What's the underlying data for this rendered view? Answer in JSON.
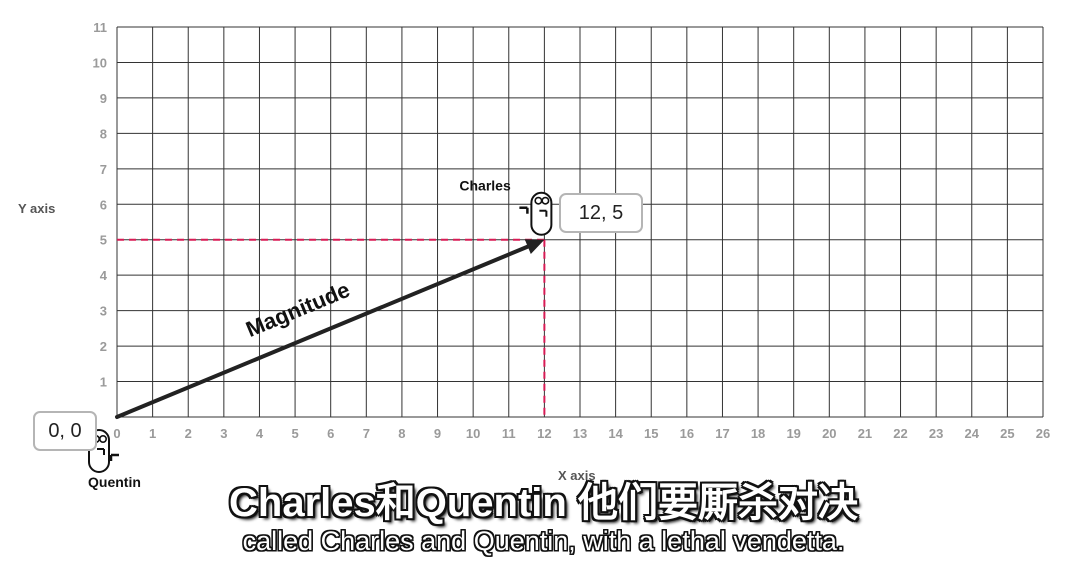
{
  "chart_data": {
    "type": "scatter",
    "xlabel": "X axis",
    "ylabel": "Y axis",
    "xlim": [
      0,
      26
    ],
    "ylim": [
      0,
      11
    ],
    "x_ticks": [
      "0",
      "1",
      "2",
      "3",
      "4",
      "5",
      "6",
      "7",
      "8",
      "9",
      "10",
      "11",
      "12",
      "13",
      "14",
      "15",
      "16",
      "17",
      "18",
      "19",
      "20",
      "21",
      "22",
      "23",
      "24",
      "25",
      "26"
    ],
    "y_ticks": [
      "1",
      "2",
      "3",
      "4",
      "5",
      "6",
      "7",
      "8",
      "9",
      "10",
      "11"
    ],
    "grid": true,
    "vector": {
      "from": [
        0,
        0
      ],
      "to": [
        12,
        5
      ],
      "label": "Magnitude",
      "color": "#222222"
    },
    "guides": {
      "x": 12,
      "y": 5,
      "color": "#d81b55",
      "style": "dashed"
    },
    "points": [
      {
        "name": "Quentin",
        "coords_label": "0, 0",
        "x": 0,
        "y": 0
      },
      {
        "name": "Charles",
        "coords_label": "12, 5",
        "x": 12,
        "y": 5
      }
    ]
  },
  "subtitles": {
    "chinese": "Charles和Quentin 他们要厮杀对决",
    "english": "called Charles and Quentin, with a lethal vendetta."
  },
  "colors": {
    "grid": "#333333",
    "guide": "#d81b55",
    "tick": "#9a9a9a"
  },
  "icons": {
    "character": "pill-character-icon"
  }
}
